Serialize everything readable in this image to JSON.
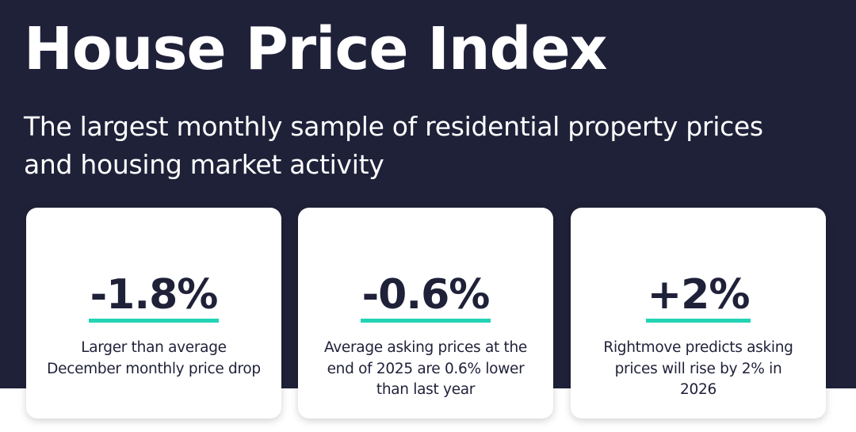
{
  "header": {
    "title": "House Price Index",
    "subtitle": "The largest monthly sample of residential property prices and housing market activity"
  },
  "stats": [
    {
      "value": "-1.8%",
      "description": "Larger than average December monthly price drop"
    },
    {
      "value": "-0.6%",
      "description": "Average asking prices at the end of 2025 are 0.6% lower than last year"
    },
    {
      "value": "+2%",
      "description": "Rightmove predicts asking prices will rise by 2% in 2026"
    }
  ],
  "colors": {
    "background": "#1f2139",
    "accent": "#22d3b4",
    "card": "#ffffff",
    "text_dark": "#1f2139"
  }
}
